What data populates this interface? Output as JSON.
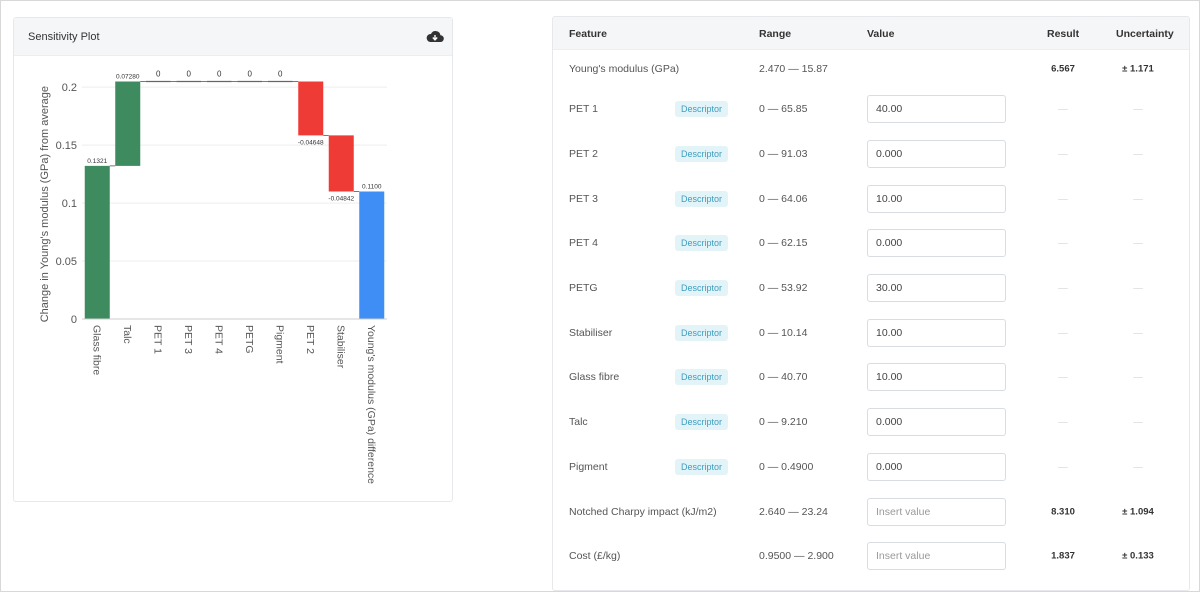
{
  "plot": {
    "title": "Sensitivity Plot",
    "download_icon": "cloud-download-icon",
    "ylabel": "Change in Young's modulus (GPa) from average"
  },
  "chart_data": {
    "type": "waterfall",
    "ylabel": "Change in Young's modulus (GPa) from average",
    "ylim": [
      0,
      0.22
    ],
    "yticks": [
      0,
      0.05,
      0.1,
      0.15,
      0.2
    ],
    "grid": true,
    "categories": [
      "Glass fibre",
      "Talc",
      "PET 1",
      "PET 3",
      "PET 4",
      "PETG",
      "Pigment",
      "PET 2",
      "Stabiliser",
      "Young's modulus (GPa) difference"
    ],
    "values": [
      0.1321,
      0.0728,
      0,
      0,
      0,
      0,
      0,
      -0.04648,
      -0.04842,
      0.11
    ],
    "labels": [
      "0.1321",
      "0.07280",
      "0",
      "0",
      "0",
      "0",
      "0",
      "-0.04648",
      "-0.04842",
      "0.1100"
    ],
    "colors": [
      "#3d8b5f",
      "#3d8b5f",
      "#3d8b5f",
      "#3d8b5f",
      "#3d8b5f",
      "#3d8b5f",
      "#3d8b5f",
      "#ef3b36",
      "#ef3b36",
      "#3f8ef5"
    ],
    "total_index": 9
  },
  "table": {
    "headers": {
      "feature": "Feature",
      "range": "Range",
      "value": "Value",
      "result": "Result",
      "uncertainty": "Uncertainty"
    },
    "target": {
      "feature": "Young's modulus (GPa)",
      "range": "2.470 — 15.87",
      "result": "6.567",
      "uncertainty": "± 1.171"
    },
    "descriptors": [
      {
        "feature": "PET 1",
        "badge": "Descriptor",
        "range": "0 — 65.85",
        "value": "40.00",
        "result": "—",
        "uncertainty": "—"
      },
      {
        "feature": "PET 2",
        "badge": "Descriptor",
        "range": "0 — 91.03",
        "value": "0.000",
        "result": "—",
        "uncertainty": "—"
      },
      {
        "feature": "PET 3",
        "badge": "Descriptor",
        "range": "0 — 64.06",
        "value": "10.00",
        "result": "—",
        "uncertainty": "—"
      },
      {
        "feature": "PET 4",
        "badge": "Descriptor",
        "range": "0 — 62.15",
        "value": "0.000",
        "result": "—",
        "uncertainty": "—"
      },
      {
        "feature": "PETG",
        "badge": "Descriptor",
        "range": "0 — 53.92",
        "value": "30.00",
        "result": "—",
        "uncertainty": "—"
      },
      {
        "feature": "Stabiliser",
        "badge": "Descriptor",
        "range": "0 — 10.14",
        "value": "10.00",
        "result": "—",
        "uncertainty": "—"
      },
      {
        "feature": "Glass fibre",
        "badge": "Descriptor",
        "range": "0 — 40.70",
        "value": "10.00",
        "result": "—",
        "uncertainty": "—"
      },
      {
        "feature": "Talc",
        "badge": "Descriptor",
        "range": "0 — 9.210",
        "value": "0.000",
        "result": "—",
        "uncertainty": "—"
      },
      {
        "feature": "Pigment",
        "badge": "Descriptor",
        "range": "0 — 0.4900",
        "value": "0.000",
        "result": "—",
        "uncertainty": "—"
      }
    ],
    "targets": [
      {
        "feature": "Notched Charpy impact (kJ/m2)",
        "range": "2.640 — 23.24",
        "placeholder": "Insert value",
        "result": "8.310",
        "uncertainty": "± 1.094"
      },
      {
        "feature": "Cost (£/kg)",
        "range": "0.9500 — 2.900",
        "placeholder": "Insert value",
        "result": "1.837",
        "uncertainty": "± 0.133"
      }
    ]
  }
}
